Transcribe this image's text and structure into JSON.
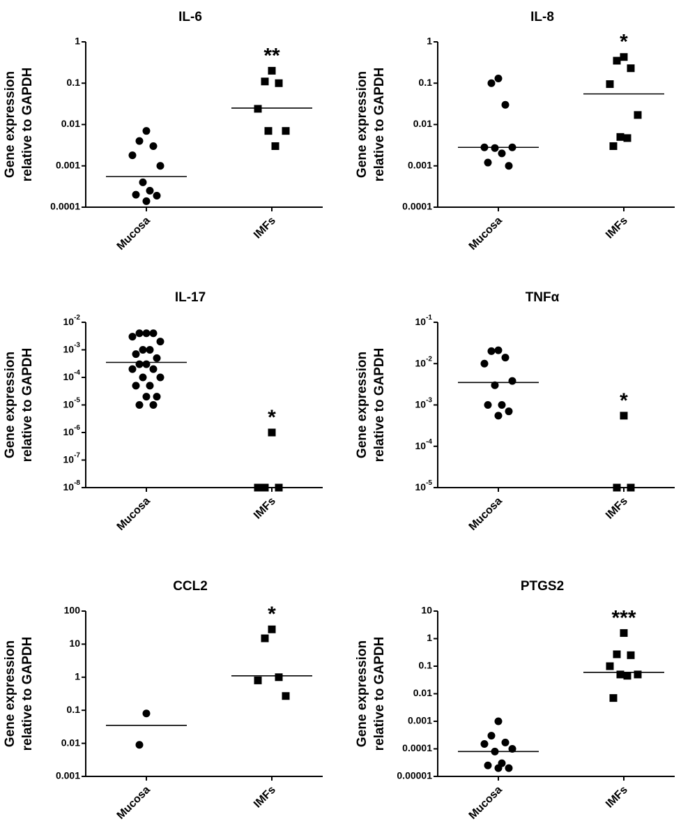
{
  "chart_data": [
    {
      "type": "scatter",
      "title": "IL-6",
      "ylabel": [
        "Gene expression",
        "relative to GAPDH"
      ],
      "log_y": true,
      "color": "#000000",
      "categories": [
        "Mucosa",
        "IMFs"
      ],
      "markers": [
        "circle",
        "square"
      ],
      "values": [
        [
          0.007,
          0.004,
          0.003,
          0.0018,
          0.001,
          0.0004,
          0.00025,
          0.0002,
          0.00019,
          0.00014
        ],
        [
          0.2,
          0.11,
          0.1,
          0.024,
          0.007,
          0.007,
          0.003
        ]
      ],
      "medians": [
        0.00055,
        0.025
      ],
      "annotations": [
        null,
        "**"
      ],
      "ylim": [
        0.0001,
        1
      ],
      "yticks": [
        0.0001,
        0.001,
        0.01,
        0.1,
        1
      ]
    },
    {
      "type": "scatter",
      "title": "IL-8",
      "ylabel": [
        "Gene expression",
        "relative to GAPDH"
      ],
      "log_y": true,
      "color": "#000000",
      "categories": [
        "Mucosa",
        "IMFs"
      ],
      "markers": [
        "circle",
        "square"
      ],
      "values": [
        [
          0.13,
          0.1,
          0.03,
          0.0028,
          0.0028,
          0.0027,
          0.002,
          0.0012,
          0.001
        ],
        [
          0.43,
          0.35,
          0.23,
          0.095,
          0.017,
          0.005,
          0.0047,
          0.003
        ]
      ],
      "medians": [
        0.0028,
        0.055
      ],
      "annotations": [
        null,
        "*"
      ],
      "ylim": [
        0.0001,
        1
      ],
      "yticks": [
        0.0001,
        0.001,
        0.01,
        0.1,
        1
      ]
    },
    {
      "type": "scatter",
      "title": "IL-17",
      "ylabel": [
        "Gene expression",
        "relative to GAPDH"
      ],
      "log_y": true,
      "color": "#000000",
      "categories": [
        "Mucosa",
        "IMFs"
      ],
      "markers": [
        "circle",
        "square"
      ],
      "values": [
        [
          0.004,
          0.004,
          0.004,
          0.003,
          0.002,
          0.001,
          0.001,
          0.0007,
          0.0005,
          0.0003,
          0.0003,
          0.0002,
          0.0002,
          0.0001,
          0.0001,
          5e-05,
          5e-05,
          2e-05,
          2e-05,
          1e-05,
          1e-05
        ],
        [
          1e-06,
          1e-08,
          1e-08,
          1e-08
        ]
      ],
      "medians": [
        0.00035,
        null
      ],
      "annotations": [
        null,
        "*"
      ],
      "ylim": [
        1e-08,
        0.01
      ],
      "yticks": [
        {
          "value": 1e-08,
          "label": "10-8"
        },
        {
          "value": 1e-07,
          "label": "10-7"
        },
        {
          "value": 1e-06,
          "label": "10-6"
        },
        {
          "value": 1e-05,
          "label": "10-5"
        },
        {
          "value": 0.0001,
          "label": "10-4"
        },
        {
          "value": 0.001,
          "label": "10-3"
        },
        {
          "value": 0.01,
          "label": "10-2"
        }
      ]
    },
    {
      "type": "scatter",
      "title": "TNFα",
      "ylabel": [
        "Gene expression",
        "relative to GAPDH"
      ],
      "log_y": true,
      "color": "#000000",
      "categories": [
        "Mucosa",
        "IMFs"
      ],
      "markers": [
        "circle",
        "square"
      ],
      "values": [
        [
          0.021,
          0.02,
          0.014,
          0.01,
          0.0038,
          0.003,
          0.001,
          0.001,
          0.0007,
          0.00055
        ],
        [
          0.00055,
          1e-05,
          1e-05
        ]
      ],
      "medians": [
        0.0035,
        null
      ],
      "annotations": [
        null,
        "*"
      ],
      "ylim": [
        1e-05,
        0.1
      ],
      "yticks": [
        {
          "value": 1e-05,
          "label": "10-5"
        },
        {
          "value": 0.0001,
          "label": "10-4"
        },
        {
          "value": 0.001,
          "label": "10-3"
        },
        {
          "value": 0.01,
          "label": "10-2"
        },
        {
          "value": 0.1,
          "label": "10-1"
        }
      ]
    },
    {
      "type": "scatter",
      "title": "CCL2",
      "ylabel": [
        "Gene expression",
        "relative to GAPDH"
      ],
      "log_y": true,
      "color": "#000000",
      "categories": [
        "Mucosa",
        "IMFs"
      ],
      "markers": [
        "circle",
        "square"
      ],
      "values": [
        [
          0.08,
          0.009
        ],
        [
          28,
          15,
          1,
          0.8,
          0.27
        ]
      ],
      "medians": [
        0.035,
        1.1
      ],
      "annotations": [
        null,
        "*"
      ],
      "ylim": [
        0.001,
        100
      ],
      "yticks": [
        0.001,
        0.01,
        0.1,
        1,
        10,
        100
      ]
    },
    {
      "type": "scatter",
      "title": "PTGS2",
      "ylabel": [
        "Gene expression",
        "relative to GAPDH"
      ],
      "log_y": true,
      "color": "#000000",
      "categories": [
        "Mucosa",
        "IMFs"
      ],
      "markers": [
        "circle",
        "square"
      ],
      "values": [
        [
          0.001,
          0.0003,
          0.00017,
          0.00015,
          0.0001,
          8e-05,
          3e-05,
          2.5e-05,
          2e-05,
          2e-05
        ],
        [
          1.6,
          0.27,
          0.25,
          0.1,
          0.05,
          0.05,
          0.045,
          0.007
        ]
      ],
      "medians": [
        8e-05,
        0.06
      ],
      "annotations": [
        null,
        "***"
      ],
      "ylim": [
        1e-05,
        10
      ],
      "yticks": [
        1e-05,
        0.0001,
        0.001,
        0.01,
        0.1,
        1,
        10
      ]
    }
  ]
}
